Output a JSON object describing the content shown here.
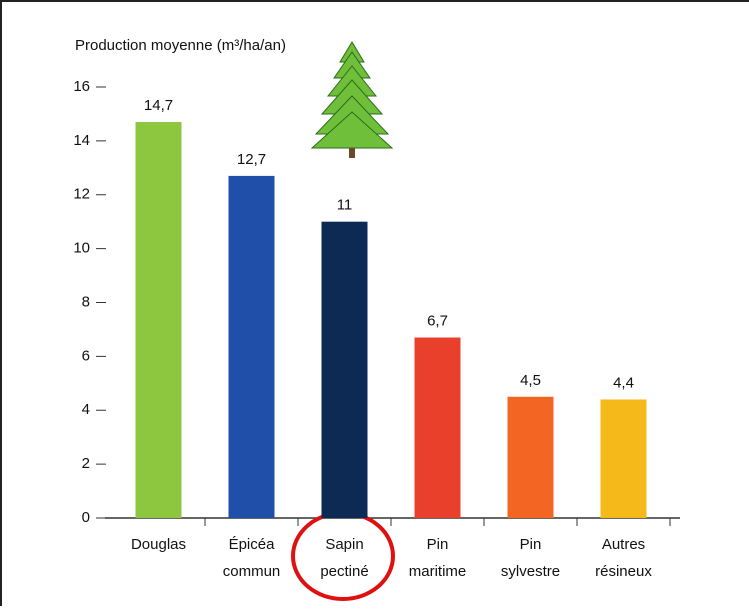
{
  "chart_data": {
    "type": "bar",
    "title": "Production moyenne (m³/ha/an)",
    "categories": [
      "Douglas",
      "Épicéa commun",
      "Sapin pectiné",
      "Pin maritime",
      "Pin sylvestre",
      "Autres résineux"
    ],
    "values": [
      14.7,
      12.7,
      11,
      6.7,
      4.5,
      4.4
    ],
    "value_labels": [
      "14,7",
      "12,7",
      "11",
      "6,7",
      "4,5",
      "4,4"
    ],
    "colors": [
      "#8dc63f",
      "#1f4fa8",
      "#0d2a55",
      "#e8402a",
      "#f26522",
      "#f6b91a"
    ],
    "ylim": [
      0,
      16
    ],
    "yticks": [
      0,
      2,
      4,
      6,
      8,
      10,
      12,
      14,
      16
    ]
  }
}
